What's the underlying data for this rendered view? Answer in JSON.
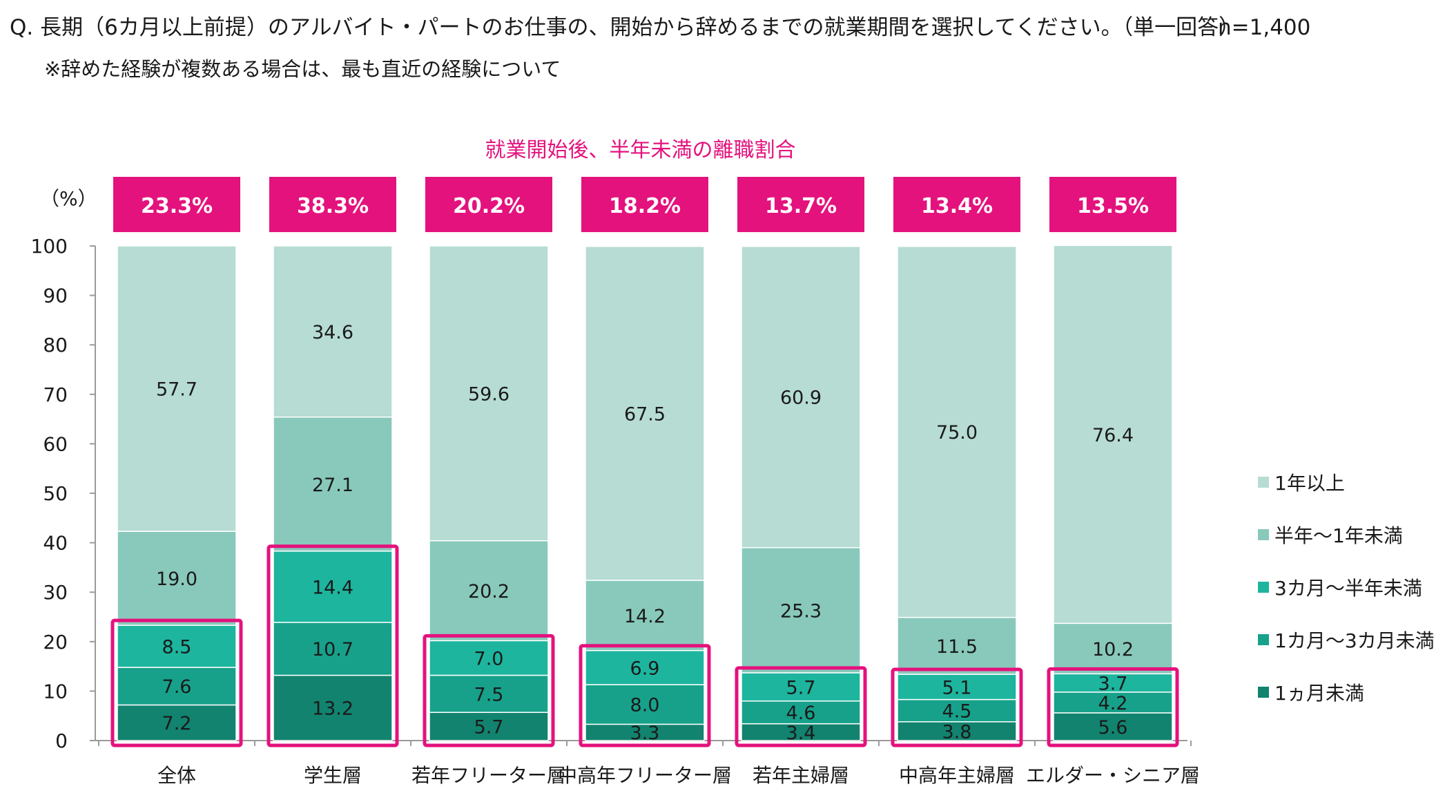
{
  "question": {
    "text": "Q.  長期（6カ月以上前提）のアルバイト・パートのお仕事の、開始から辞めるまでの就業期間を選択してください。（単一回答）",
    "n": "n=1,400",
    "note": "※辞めた経験が複数ある場合は、最も直近の経験について"
  },
  "chart_data": {
    "type": "bar",
    "stacked": true,
    "subtitle": "就業開始後、半年未満の離職割合",
    "ylabel": "（%）",
    "ylim": [
      0,
      100
    ],
    "yticks": [
      0,
      10,
      20,
      30,
      40,
      50,
      60,
      70,
      80,
      90,
      100
    ],
    "grid": false,
    "legend_position": "right",
    "categories": [
      "全体",
      "学生層",
      "若年フリーター層",
      "中高年フリーター層",
      "若年主婦層",
      "中高年主婦層",
      "エルダー・シニア層"
    ],
    "series": [
      {
        "name": "1ヵ月未満",
        "color": "#12836f",
        "values": [
          7.2,
          13.2,
          5.7,
          3.3,
          3.4,
          3.8,
          5.6
        ]
      },
      {
        "name": "1カ月～3カ月未満",
        "color": "#17a18a",
        "values": [
          7.6,
          10.7,
          7.5,
          8.0,
          4.6,
          4.5,
          4.2
        ]
      },
      {
        "name": "3カ月～半年未満",
        "color": "#1db59e",
        "values": [
          8.5,
          14.4,
          7.0,
          6.9,
          5.7,
          5.1,
          3.7
        ]
      },
      {
        "name": "半年～1年未満",
        "color": "#88c9bb",
        "values": [
          19.0,
          27.1,
          20.2,
          14.2,
          25.3,
          11.5,
          10.2
        ]
      },
      {
        "name": "1年以上",
        "color": "#b6dcd3",
        "values": [
          57.7,
          34.6,
          59.6,
          67.5,
          60.9,
          75.0,
          76.4
        ]
      }
    ],
    "legend_order": [
      "1年以上",
      "半年～1年未満",
      "3カ月～半年未満",
      "1カ月～3カ月未満",
      "1ヵ月未満"
    ],
    "highlight_labels": [
      "23.3%",
      "38.3%",
      "20.2%",
      "18.2%",
      "13.7%",
      "13.4%",
      "13.5%"
    ],
    "highlight_color": "#e4127d"
  }
}
